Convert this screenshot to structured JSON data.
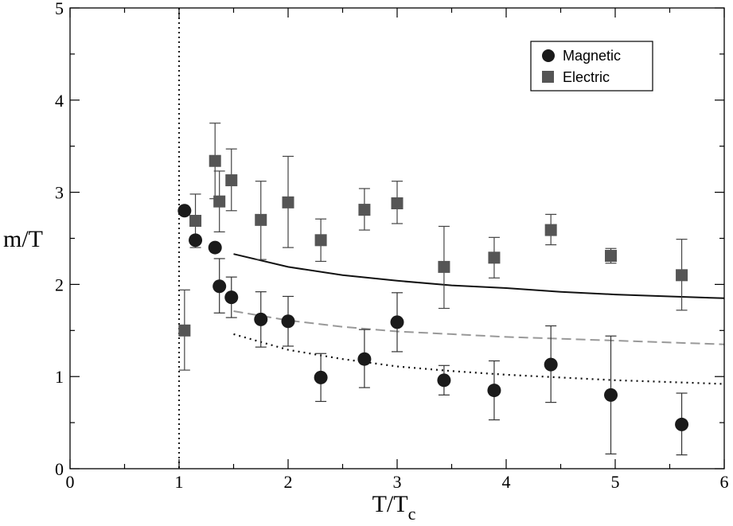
{
  "chart_data": {
    "type": "scatter",
    "xlabel": {
      "main": "T/T",
      "sub": "c"
    },
    "ylabel": "m/T",
    "xlim": [
      0,
      6
    ],
    "ylim": [
      0,
      5
    ],
    "x_ticks": [
      "0",
      "1",
      "2",
      "3",
      "4",
      "5",
      "6"
    ],
    "y_ticks": [
      "0",
      "1",
      "2",
      "3",
      "4",
      "5"
    ],
    "legend": {
      "position": "top-right",
      "entries": [
        "Magnetic",
        "Electric"
      ]
    },
    "series": [
      {
        "name": "Magnetic",
        "marker": "circle",
        "color": "#1a1a1a",
        "points": [
          {
            "x": 1.05,
            "y": 2.8,
            "lo": 2.8,
            "hi": 2.8
          },
          {
            "x": 1.15,
            "y": 2.48,
            "lo": 2.48,
            "hi": 2.48
          },
          {
            "x": 1.33,
            "y": 2.4,
            "lo": 2.4,
            "hi": 2.4
          },
          {
            "x": 1.37,
            "y": 1.98,
            "lo": 1.69,
            "hi": 2.28
          },
          {
            "x": 1.48,
            "y": 1.86,
            "lo": 1.64,
            "hi": 2.08
          },
          {
            "x": 1.75,
            "y": 1.62,
            "lo": 1.32,
            "hi": 1.92
          },
          {
            "x": 2.0,
            "y": 1.6,
            "lo": 1.33,
            "hi": 1.87
          },
          {
            "x": 2.3,
            "y": 0.99,
            "lo": 0.73,
            "hi": 1.25
          },
          {
            "x": 2.7,
            "y": 1.19,
            "lo": 0.88,
            "hi": 1.51
          },
          {
            "x": 3.0,
            "y": 1.59,
            "lo": 1.27,
            "hi": 1.91
          },
          {
            "x": 3.43,
            "y": 0.96,
            "lo": 0.8,
            "hi": 1.12
          },
          {
            "x": 3.89,
            "y": 0.85,
            "lo": 0.53,
            "hi": 1.17
          },
          {
            "x": 4.41,
            "y": 1.13,
            "lo": 0.72,
            "hi": 1.55
          },
          {
            "x": 4.96,
            "y": 0.8,
            "lo": 0.16,
            "hi": 1.44
          },
          {
            "x": 5.61,
            "y": 0.48,
            "lo": 0.15,
            "hi": 0.82
          }
        ]
      },
      {
        "name": "Electric",
        "marker": "square",
        "color": "#555555",
        "points": [
          {
            "x": 1.05,
            "y": 1.5,
            "lo": 1.07,
            "hi": 1.94
          },
          {
            "x": 1.15,
            "y": 2.69,
            "lo": 2.4,
            "hi": 2.98
          },
          {
            "x": 1.33,
            "y": 3.34,
            "lo": 2.93,
            "hi": 3.75
          },
          {
            "x": 1.37,
            "y": 2.9,
            "lo": 2.57,
            "hi": 3.23
          },
          {
            "x": 1.48,
            "y": 3.13,
            "lo": 2.8,
            "hi": 3.47
          },
          {
            "x": 1.75,
            "y": 2.7,
            "lo": 2.27,
            "hi": 3.12
          },
          {
            "x": 2.0,
            "y": 2.89,
            "lo": 2.4,
            "hi": 3.39
          },
          {
            "x": 2.3,
            "y": 2.48,
            "lo": 2.25,
            "hi": 2.71
          },
          {
            "x": 2.7,
            "y": 2.81,
            "lo": 2.59,
            "hi": 3.04
          },
          {
            "x": 3.0,
            "y": 2.88,
            "lo": 2.66,
            "hi": 3.12
          },
          {
            "x": 3.43,
            "y": 2.19,
            "lo": 1.74,
            "hi": 2.63
          },
          {
            "x": 3.89,
            "y": 2.29,
            "lo": 2.07,
            "hi": 2.51
          },
          {
            "x": 4.41,
            "y": 2.59,
            "lo": 2.43,
            "hi": 2.76
          },
          {
            "x": 4.96,
            "y": 2.31,
            "lo": 2.23,
            "hi": 2.39
          },
          {
            "x": 5.61,
            "y": 2.1,
            "lo": 1.72,
            "hi": 2.49
          }
        ]
      }
    ],
    "curves": [
      {
        "name": "solid-curve",
        "style": "solid",
        "color": "#111111",
        "x": [
          1.5,
          2.0,
          2.5,
          3.0,
          3.5,
          4.0,
          4.5,
          5.0,
          5.5,
          6.0
        ],
        "y": [
          2.33,
          2.19,
          2.1,
          2.04,
          1.99,
          1.96,
          1.92,
          1.89,
          1.87,
          1.85
        ]
      },
      {
        "name": "dashed-curve",
        "style": "dashed",
        "color": "#999999",
        "x": [
          1.5,
          2.0,
          2.5,
          3.0,
          3.5,
          4.0,
          4.5,
          5.0,
          5.5,
          6.0
        ],
        "y": [
          1.71,
          1.61,
          1.54,
          1.49,
          1.46,
          1.43,
          1.41,
          1.39,
          1.37,
          1.35
        ]
      },
      {
        "name": "dotted-curve",
        "style": "dotted",
        "color": "#111111",
        "x": [
          1.5,
          2.0,
          2.5,
          3.0,
          3.5,
          4.0,
          4.5,
          5.0,
          5.5,
          6.0
        ],
        "y": [
          1.46,
          1.29,
          1.19,
          1.11,
          1.06,
          1.02,
          0.99,
          0.96,
          0.94,
          0.92
        ]
      }
    ],
    "reference_line": {
      "x": 1.0,
      "style": "dotted"
    }
  }
}
